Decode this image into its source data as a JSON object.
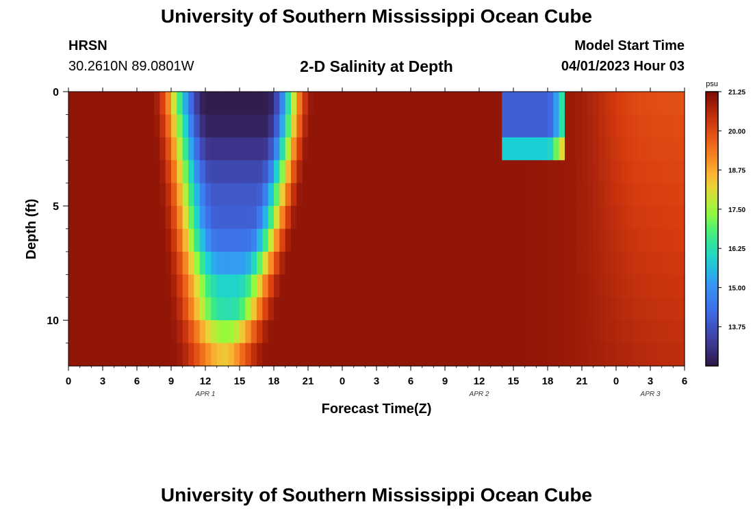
{
  "header": {
    "title": "University of Southern Mississippi Ocean Cube",
    "station_code": "HRSN",
    "station_coords": "30.2610N  89.0801W",
    "subtitle": "2-D Salinity at Depth",
    "model_start_label": "Model Start Time",
    "model_start_value": "04/01/2023 Hour 03"
  },
  "footer": {
    "title": "University of Southern Mississippi Ocean Cube"
  },
  "chart_data": {
    "type": "heatmap",
    "title": "2-D Salinity at Depth",
    "xlabel": "Forecast Time(Z)",
    "ylabel": "Depth (ft)",
    "x_ticks": [
      "0",
      "3",
      "6",
      "9",
      "12",
      "15",
      "18",
      "21",
      "0",
      "3",
      "6",
      "9",
      "12",
      "15",
      "18",
      "21",
      "0",
      "3",
      "6"
    ],
    "x_range_hours": [
      0,
      54
    ],
    "date_labels": [
      {
        "label": "APR 1",
        "hour": 12
      },
      {
        "label": "APR 2",
        "hour": 36
      },
      {
        "label": "APR 3",
        "hour": 51
      }
    ],
    "y_ticks": [
      0,
      5,
      10
    ],
    "y_range_ft": [
      0,
      12
    ],
    "depth_levels": 12,
    "colorbar": {
      "unit": "psu",
      "min": 12.5,
      "max": 21.25,
      "ticks": [
        "21.25",
        "20.00",
        "18.75",
        "17.50",
        "16.25",
        "15.00",
        "13.75"
      ],
      "tick_values": [
        21.25,
        20.0,
        18.75,
        17.5,
        16.25,
        15.0,
        13.75
      ]
    },
    "salinity_model": {
      "high_left_psu": 21.0,
      "high_right_psu": 20.5,
      "fresh_core_min_psu": 12.6,
      "fresh_core_mid_depth_psu": 14.0,
      "bottom_layer_psu": 18.5,
      "fresh_lens_start_hour": 14,
      "fresh_lens_end_hour": 19.5
    }
  }
}
